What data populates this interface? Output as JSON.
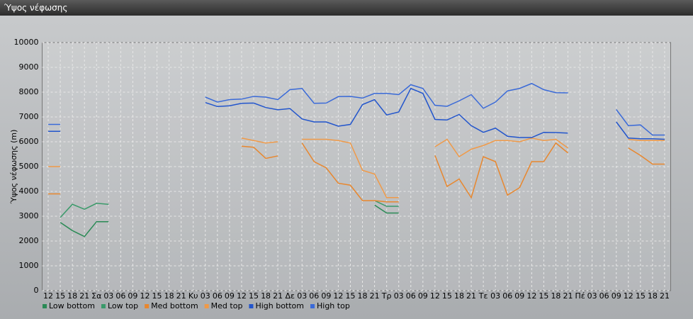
{
  "window_title": "Ύψος νέφωσης",
  "chart_data": {
    "type": "line",
    "y_label": "Ύψος νέφωσης (m)",
    "categories": [
      "12",
      "15",
      "18",
      "21",
      "Σα",
      "03",
      "06",
      "09",
      "12",
      "15",
      "18",
      "21",
      "Κυ",
      "03",
      "06",
      "09",
      "12",
      "15",
      "18",
      "21",
      "Δε",
      "03",
      "06",
      "09",
      "12",
      "15",
      "18",
      "21",
      "Τρ",
      "03",
      "06",
      "09",
      "12",
      "15",
      "18",
      "21",
      "Τε",
      "03",
      "06",
      "09",
      "12",
      "15",
      "18",
      "21",
      "Πέ",
      "03",
      "06",
      "09",
      "12",
      "15",
      "18",
      "21"
    ],
    "ylim": [
      0,
      10000
    ],
    "yticks": [
      0,
      1000,
      2000,
      3000,
      4000,
      5000,
      6000,
      7000,
      8000,
      9000,
      10000
    ],
    "grid": true,
    "series": [
      {
        "name": "Low bottom",
        "color": "#2a8a55",
        "values": [
          null,
          2750,
          2420,
          2180,
          2780,
          2780,
          null,
          null,
          null,
          null,
          null,
          null,
          null,
          null,
          null,
          null,
          null,
          null,
          null,
          null,
          null,
          null,
          null,
          null,
          null,
          null,
          null,
          3450,
          3130,
          3130,
          null,
          null,
          null,
          null,
          null,
          null,
          null,
          null,
          null,
          null,
          null,
          null,
          null,
          null,
          null,
          null,
          null,
          null,
          null,
          null,
          null,
          null
        ]
      },
      {
        "name": "Low top",
        "color": "#3a9a6a",
        "values": [
          null,
          2950,
          3480,
          3280,
          3520,
          3480,
          null,
          null,
          null,
          null,
          null,
          null,
          null,
          null,
          null,
          null,
          null,
          null,
          null,
          null,
          null,
          null,
          null,
          null,
          null,
          null,
          null,
          3630,
          3400,
          3400,
          null,
          null,
          null,
          null,
          null,
          null,
          null,
          null,
          null,
          null,
          null,
          null,
          null,
          null,
          null,
          null,
          null,
          null,
          null,
          null,
          null,
          null
        ]
      },
      {
        "name": "Med bottom",
        "color": "#e8872e",
        "values": [
          3900,
          3900,
          null,
          null,
          null,
          null,
          null,
          null,
          null,
          null,
          null,
          null,
          null,
          null,
          null,
          null,
          5820,
          5780,
          5330,
          5430,
          null,
          5950,
          5200,
          4950,
          4330,
          4250,
          3630,
          3630,
          3580,
          3580,
          null,
          null,
          5450,
          4200,
          4500,
          3750,
          5400,
          5200,
          3850,
          4150,
          5200,
          5200,
          5950,
          5550,
          null,
          null,
          null,
          null,
          5750,
          5450,
          5100,
          5100
        ]
      },
      {
        "name": "Med top",
        "color": "#f09a48",
        "values": [
          5000,
          5000,
          null,
          null,
          null,
          null,
          null,
          null,
          null,
          null,
          null,
          null,
          null,
          null,
          null,
          null,
          6150,
          6050,
          5950,
          6000,
          null,
          6100,
          6100,
          6100,
          6050,
          5950,
          4850,
          4700,
          3750,
          3750,
          null,
          null,
          5800,
          6100,
          5400,
          5700,
          5850,
          6050,
          6050,
          6000,
          6150,
          6050,
          6100,
          5750,
          null,
          null,
          null,
          null,
          6100,
          6050,
          6050,
          6050
        ]
      },
      {
        "name": "High bottom",
        "color": "#2255cc",
        "values": [
          6420,
          6420,
          null,
          null,
          null,
          null,
          null,
          null,
          null,
          null,
          null,
          null,
          null,
          7580,
          7420,
          7450,
          7550,
          7560,
          7380,
          7290,
          7340,
          6920,
          6800,
          6800,
          6630,
          6700,
          7500,
          7700,
          7080,
          7200,
          8150,
          7950,
          6900,
          6880,
          7100,
          6650,
          6380,
          6550,
          6220,
          6170,
          6170,
          6380,
          6370,
          6350,
          null,
          null,
          null,
          6800,
          6150,
          6120,
          6120,
          6100
        ]
      },
      {
        "name": "High top",
        "color": "#3a6ad8",
        "values": [
          6700,
          6700,
          null,
          null,
          null,
          null,
          null,
          null,
          null,
          null,
          null,
          null,
          null,
          7800,
          7600,
          7700,
          7720,
          7830,
          7800,
          7700,
          8100,
          8150,
          7550,
          7560,
          7820,
          7830,
          7760,
          7950,
          7950,
          7900,
          8300,
          8150,
          7470,
          7430,
          7650,
          7900,
          7350,
          7600,
          8050,
          8150,
          8350,
          8100,
          7980,
          7970,
          null,
          null,
          null,
          7300,
          6650,
          6680,
          6270,
          6270
        ]
      }
    ]
  }
}
